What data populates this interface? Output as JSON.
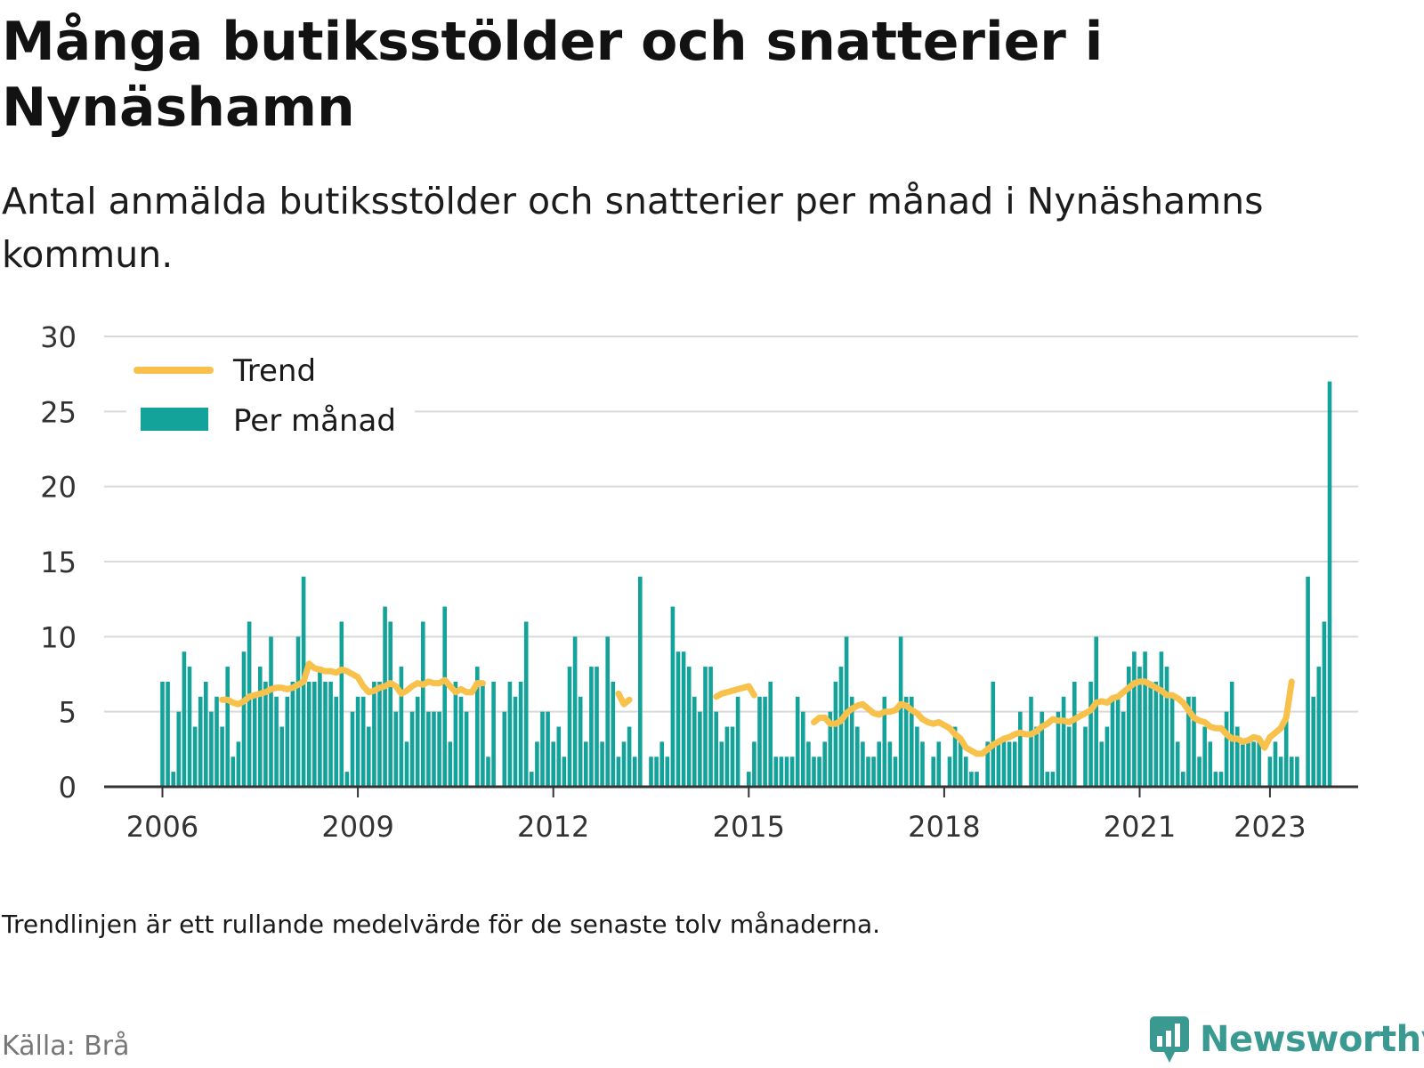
{
  "title": "Många butiksstölder och snatterier i Nynäshamn",
  "subtitle": "Antal anmälda butiksstölder och snatterier per månad i Nynäshamns kommun.",
  "note": "Trendlinjen är ett rullande medelvärde för de senaste tolv månaderna.",
  "source": "Källa: Brå",
  "brand": "Newsworthy",
  "colors": {
    "bars": "#14a39a",
    "trend": "#f7c14c",
    "grid": "#d9d9d9",
    "axis": "#333333",
    "brand": "#3a9a91"
  },
  "chart_data": {
    "type": "bar",
    "title": "Många butiksstölder och snatterier i Nynäshamn",
    "xlabel": "",
    "ylabel": "",
    "ylim": [
      0,
      30
    ],
    "yticks": [
      0,
      5,
      10,
      15,
      20,
      25,
      30
    ],
    "xticks": [
      "2006",
      "2009",
      "2012",
      "2015",
      "2018",
      "2021",
      "2023"
    ],
    "grid": true,
    "legend_position": "top-left",
    "start_month": "2006-01",
    "series": [
      {
        "name": "Per månad",
        "type": "bar",
        "values": [
          7,
          7,
          1,
          5,
          9,
          8,
          4,
          6,
          7,
          5,
          6,
          4,
          8,
          2,
          3,
          9,
          11,
          6,
          8,
          7,
          10,
          6,
          4,
          6,
          7,
          10,
          14,
          7,
          7,
          8,
          7,
          7,
          6,
          11,
          1,
          5,
          6,
          6,
          4,
          7,
          7,
          12,
          11,
          5,
          8,
          3,
          5,
          6,
          11,
          5,
          5,
          5,
          12,
          3,
          7,
          6,
          5,
          0,
          8,
          7,
          2,
          7,
          0,
          5,
          7,
          6,
          7,
          11,
          1,
          3,
          5,
          5,
          3,
          4,
          2,
          8,
          10,
          6,
          3,
          8,
          8,
          3,
          10,
          7,
          2,
          3,
          4,
          2,
          14,
          0,
          2,
          2,
          3,
          2,
          12,
          9,
          9,
          8,
          6,
          5,
          8,
          8,
          5,
          3,
          4,
          4,
          6,
          0,
          1,
          3,
          6,
          6,
          7,
          2,
          2,
          2,
          2,
          6,
          5,
          3,
          2,
          2,
          3,
          5,
          7,
          8,
          10,
          6,
          4,
          3,
          2,
          2,
          3,
          6,
          3,
          2,
          10,
          6,
          6,
          4,
          3,
          0,
          2,
          3,
          0,
          2,
          4,
          3,
          2,
          1,
          1,
          0,
          3,
          7,
          3,
          3,
          3,
          3,
          5,
          0,
          6,
          4,
          5,
          1,
          1,
          5,
          6,
          4,
          7,
          0,
          4,
          7,
          10,
          3,
          4,
          6,
          6,
          5,
          8,
          9,
          8,
          9,
          7,
          7,
          9,
          8,
          6,
          3,
          1,
          6,
          6,
          2,
          4,
          3,
          1,
          1,
          5,
          7,
          4,
          3,
          3,
          3,
          3,
          0,
          2,
          3,
          2,
          5,
          2,
          2,
          0,
          14,
          6,
          8,
          11,
          27
        ],
        "comment_na": "Month indices with no bar in the source are 0 above; gaps (no data) are listed in missing_months."
      },
      {
        "name": "Trend",
        "type": "line",
        "values": [
          null,
          null,
          null,
          null,
          null,
          null,
          null,
          null,
          null,
          null,
          null,
          5.8,
          5.8,
          5.6,
          5.5,
          5.7,
          6.0,
          6.1,
          6.2,
          6.3,
          6.5,
          6.6,
          6.6,
          6.5,
          6.6,
          6.8,
          7.0,
          8.2,
          7.9,
          7.8,
          7.7,
          7.7,
          7.6,
          7.8,
          7.7,
          7.5,
          7.3,
          6.7,
          6.3,
          6.4,
          6.6,
          6.7,
          6.9,
          6.7,
          6.2,
          6.4,
          6.7,
          6.9,
          6.8,
          7.0,
          6.9,
          6.9,
          7.1,
          6.7,
          6.3,
          6.5,
          6.3,
          6.3,
          6.9,
          6.9,
          null,
          null,
          null,
          null,
          null,
          null,
          null,
          null,
          null,
          null,
          null,
          null,
          null,
          null,
          null,
          null,
          null,
          null,
          null,
          null,
          null,
          null,
          null,
          null,
          6.2,
          5.5,
          5.8,
          null,
          null,
          null,
          null,
          null,
          null,
          null,
          null,
          null,
          null,
          null,
          null,
          null,
          null,
          null,
          6.0,
          6.2,
          6.3,
          6.4,
          6.5,
          6.6,
          6.7,
          6.1,
          null,
          null,
          null,
          null,
          null,
          null,
          null,
          null,
          null,
          null,
          4.3,
          4.6,
          4.6,
          4.2,
          4.2,
          4.4,
          4.9,
          5.2,
          5.4,
          5.5,
          5.2,
          4.9,
          4.8,
          5.0,
          5.0,
          5.1,
          5.5,
          5.4,
          5.1,
          4.9,
          4.5,
          4.3,
          4.2,
          4.3,
          4.1,
          3.9,
          3.5,
          3.2,
          2.6,
          2.4,
          2.2,
          2.2,
          2.5,
          2.8,
          3.0,
          3.2,
          3.3,
          3.5,
          3.6,
          3.5,
          3.5,
          3.7,
          4.0,
          4.2,
          4.5,
          4.4,
          4.4,
          4.3,
          4.5,
          4.7,
          4.9,
          5.1,
          5.6,
          5.7,
          5.6,
          5.9,
          6.0,
          6.3,
          6.6,
          6.9,
          7.0,
          7.0,
          6.8,
          6.6,
          6.4,
          6.1,
          6.1,
          5.9,
          5.6,
          5.1,
          4.6,
          4.4,
          4.3,
          4.0,
          3.9,
          3.9,
          3.5,
          3.2,
          3.2,
          3.0,
          3.1,
          3.3,
          3.2,
          2.6,
          3.3,
          3.6,
          3.9,
          4.6,
          7.0
        ]
      }
    ],
    "missing_months": [
      57,
      62,
      89,
      159,
      203
    ]
  }
}
